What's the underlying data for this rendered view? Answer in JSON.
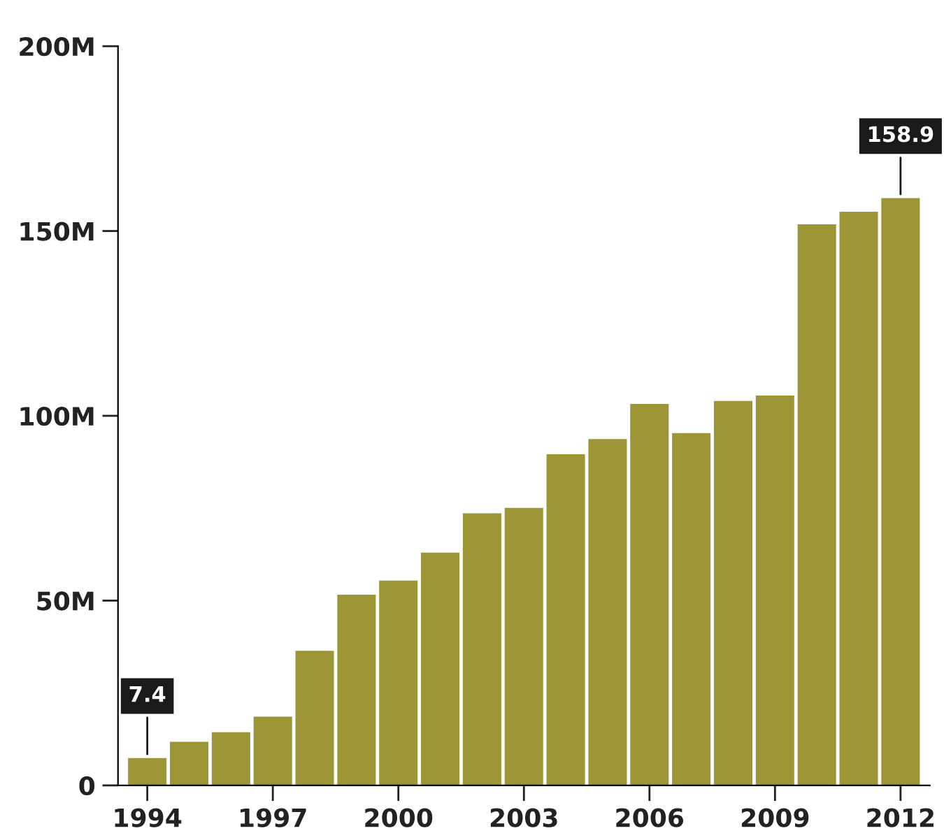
{
  "chart_data": {
    "type": "bar",
    "categories": [
      "1994",
      null,
      null,
      "1997",
      null,
      null,
      "2000",
      null,
      null,
      "2003",
      null,
      null,
      "2006",
      null,
      null,
      "2009",
      null,
      null,
      "2012"
    ],
    "values": [
      7.4,
      11.8,
      14.4,
      18.6,
      36.4,
      51.6,
      55.4,
      63,
      73.6,
      75.1,
      89.6,
      93.7,
      103.2,
      95.3,
      104,
      105.5,
      151.8,
      155.2,
      158.9
    ],
    "value_labels": [
      "7.4",
      null,
      null,
      null,
      null,
      null,
      null,
      null,
      null,
      null,
      null,
      null,
      null,
      null,
      null,
      null,
      null,
      null,
      "158.9"
    ],
    "color": "#9c9636",
    "ylim": [
      0,
      200
    ],
    "yticks": [
      0,
      {
        "value": 50,
        "label": "50M"
      },
      {
        "value": 100,
        "label": "100M"
      },
      {
        "value": 150,
        "label": "150M"
      },
      {
        "value": 200,
        "label": "200M"
      }
    ],
    "grid": false,
    "legend": false
  }
}
